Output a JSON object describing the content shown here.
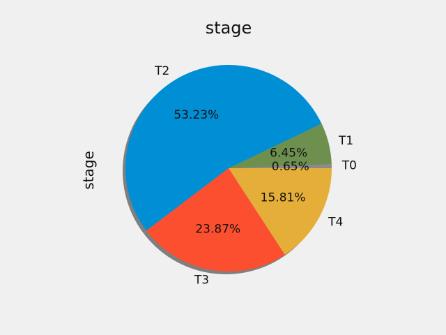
{
  "chart_data": {
    "type": "pie",
    "title": "stage",
    "ylabel": "stage",
    "shadow": true,
    "slices": [
      {
        "label": "T0",
        "percent": 0.65,
        "percent_label": "0.65%",
        "color": "#8b8b8b"
      },
      {
        "label": "T1",
        "percent": 6.45,
        "percent_label": "6.45%",
        "color": "#6d904f"
      },
      {
        "label": "T2",
        "percent": 53.23,
        "percent_label": "53.23%",
        "color": "#008fd5"
      },
      {
        "label": "T3",
        "percent": 23.87,
        "percent_label": "23.87%",
        "color": "#fc4f30"
      },
      {
        "label": "T4",
        "percent": 15.81,
        "percent_label": "15.81%",
        "color": "#e5ae38"
      }
    ]
  }
}
